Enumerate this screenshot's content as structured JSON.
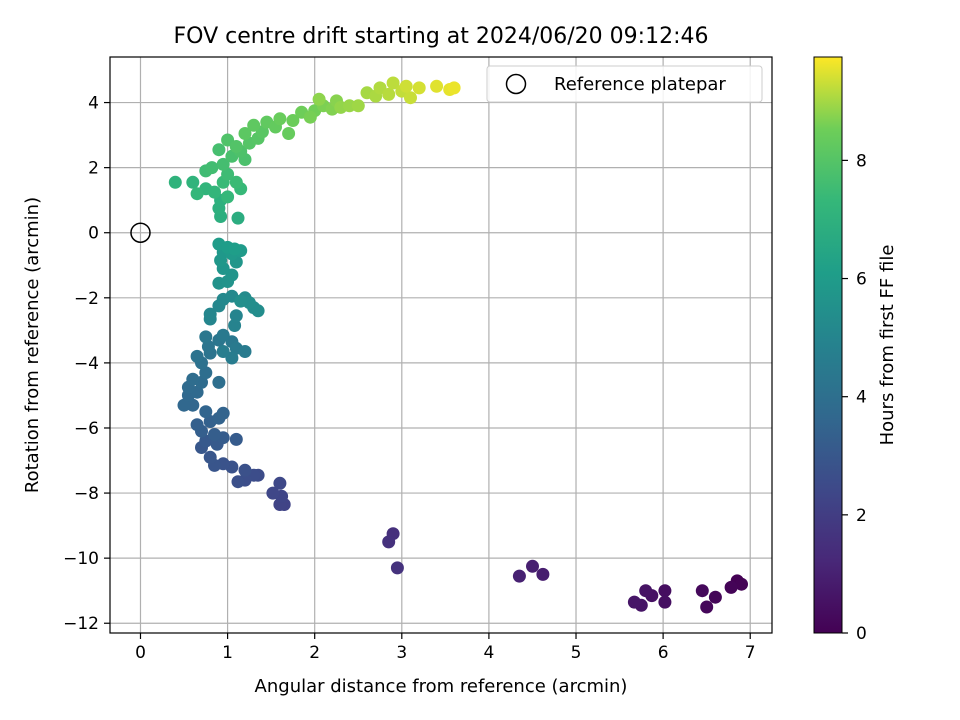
{
  "chart_data": {
    "type": "scatter",
    "title": "FOV centre drift starting at 2024/06/20 09:12:46",
    "xlabel": "Angular distance from reference (arcmin)",
    "ylabel": "Rotation from reference (arcmin)",
    "xlim": [
      -0.35,
      7.25
    ],
    "ylim": [
      -12.3,
      5.4
    ],
    "xticks": [
      0,
      1,
      2,
      3,
      4,
      5,
      6,
      7
    ],
    "yticks": [
      -12,
      -10,
      -8,
      -6,
      -4,
      -2,
      0,
      2,
      4
    ],
    "grid": true,
    "legend": {
      "location": "top-right",
      "entries": [
        "Reference platepar"
      ]
    },
    "reference_point": {
      "x": 0,
      "y": 0,
      "label": "Reference platepar"
    },
    "colorbar": {
      "label": "Hours from first FF file",
      "colormap": "viridis",
      "range": [
        0,
        9.75
      ],
      "ticks": [
        0,
        2,
        4,
        6,
        8
      ]
    },
    "points": [
      [
        6.85,
        -10.7,
        0.0
      ],
      [
        6.9,
        -10.8,
        0.05
      ],
      [
        6.78,
        -10.9,
        0.1
      ],
      [
        6.6,
        -11.2,
        0.15
      ],
      [
        6.5,
        -11.5,
        0.2
      ],
      [
        6.45,
        -11.0,
        0.25
      ],
      [
        6.02,
        -11.0,
        0.4
      ],
      [
        6.02,
        -11.35,
        0.45
      ],
      [
        5.87,
        -11.15,
        0.5
      ],
      [
        5.8,
        -11.0,
        0.55
      ],
      [
        5.75,
        -11.45,
        0.6
      ],
      [
        5.67,
        -11.35,
        0.65
      ],
      [
        4.62,
        -10.5,
        0.9
      ],
      [
        4.5,
        -10.25,
        0.95
      ],
      [
        4.35,
        -10.55,
        1.0
      ],
      [
        2.9,
        -9.25,
        1.5
      ],
      [
        2.85,
        -9.5,
        1.55
      ],
      [
        2.95,
        -10.3,
        1.6
      ],
      [
        1.65,
        -8.35,
        2.2
      ],
      [
        1.6,
        -8.35,
        2.25
      ],
      [
        1.62,
        -8.1,
        2.3
      ],
      [
        1.52,
        -8.0,
        2.35
      ],
      [
        1.6,
        -7.7,
        2.4
      ],
      [
        1.35,
        -7.45,
        2.55
      ],
      [
        1.3,
        -7.45,
        2.6
      ],
      [
        1.2,
        -7.6,
        2.65
      ],
      [
        1.12,
        -7.65,
        2.7
      ],
      [
        1.2,
        -7.3,
        2.75
      ],
      [
        1.05,
        -7.2,
        2.8
      ],
      [
        0.95,
        -7.1,
        2.85
      ],
      [
        0.85,
        -7.15,
        2.9
      ],
      [
        0.8,
        -6.9,
        2.95
      ],
      [
        0.7,
        -6.6,
        3.0
      ],
      [
        0.75,
        -6.4,
        3.05
      ],
      [
        0.88,
        -6.5,
        3.1
      ],
      [
        1.1,
        -6.35,
        3.15
      ],
      [
        0.95,
        -6.3,
        3.2
      ],
      [
        0.85,
        -6.2,
        3.25
      ],
      [
        0.7,
        -6.1,
        3.3
      ],
      [
        0.65,
        -5.9,
        3.35
      ],
      [
        0.8,
        -5.8,
        3.4
      ],
      [
        0.9,
        -5.7,
        3.45
      ],
      [
        0.95,
        -5.55,
        3.5
      ],
      [
        0.75,
        -5.5,
        3.55
      ],
      [
        0.6,
        -5.3,
        3.6
      ],
      [
        0.5,
        -5.3,
        3.65
      ],
      [
        0.55,
        -5.0,
        3.7
      ],
      [
        0.65,
        -4.9,
        3.75
      ],
      [
        0.55,
        -4.75,
        3.8
      ],
      [
        0.7,
        -4.6,
        3.85
      ],
      [
        0.6,
        -4.5,
        3.9
      ],
      [
        0.75,
        -4.3,
        3.95
      ],
      [
        0.9,
        -4.6,
        4.0
      ],
      [
        0.7,
        -4.0,
        4.1
      ],
      [
        0.65,
        -3.8,
        4.15
      ],
      [
        0.8,
        -3.7,
        4.2
      ],
      [
        0.78,
        -3.5,
        4.25
      ],
      [
        0.9,
        -3.3,
        4.3
      ],
      [
        0.75,
        -3.2,
        4.35
      ],
      [
        1.05,
        -3.35,
        4.4
      ],
      [
        0.95,
        -3.15,
        4.45
      ],
      [
        1.1,
        -3.55,
        4.5
      ],
      [
        1.2,
        -3.65,
        4.55
      ],
      [
        1.05,
        -3.85,
        4.6
      ],
      [
        0.95,
        -3.65,
        4.65
      ],
      [
        1.08,
        -2.85,
        4.9
      ],
      [
        1.1,
        -2.55,
        4.95
      ],
      [
        0.8,
        -2.65,
        5.0
      ],
      [
        0.8,
        -2.5,
        5.05
      ],
      [
        0.9,
        -2.25,
        5.1
      ],
      [
        0.95,
        -2.05,
        5.15
      ],
      [
        1.05,
        -1.95,
        5.2
      ],
      [
        1.2,
        -2.0,
        5.25
      ],
      [
        1.3,
        -2.3,
        5.3
      ],
      [
        1.35,
        -2.4,
        5.35
      ],
      [
        1.25,
        -2.15,
        5.4
      ],
      [
        1.15,
        -2.1,
        5.45
      ],
      [
        0.9,
        -1.55,
        5.55
      ],
      [
        1.0,
        -1.5,
        5.6
      ],
      [
        1.05,
        -1.3,
        5.65
      ],
      [
        0.95,
        -1.1,
        5.7
      ],
      [
        1.1,
        -0.9,
        5.75
      ],
      [
        0.92,
        -0.85,
        5.8
      ],
      [
        0.95,
        -0.6,
        5.85
      ],
      [
        1.05,
        -0.65,
        5.9
      ],
      [
        1.15,
        -0.55,
        5.95
      ],
      [
        0.9,
        -0.35,
        6.0
      ],
      [
        1.0,
        -0.45,
        6.05
      ],
      [
        1.08,
        -0.5,
        6.1
      ],
      [
        1.12,
        0.45,
        6.8
      ],
      [
        0.92,
        0.5,
        6.85
      ],
      [
        0.9,
        0.75,
        6.9
      ],
      [
        0.92,
        1.0,
        6.95
      ],
      [
        0.4,
        1.55,
        7.05
      ],
      [
        0.6,
        1.55,
        7.1
      ],
      [
        0.75,
        1.35,
        7.15
      ],
      [
        0.85,
        1.25,
        7.2
      ],
      [
        0.65,
        1.2,
        7.25
      ],
      [
        1.0,
        1.1,
        7.3
      ],
      [
        1.15,
        1.35,
        7.35
      ],
      [
        0.95,
        1.55,
        7.4
      ],
      [
        1.1,
        1.55,
        7.45
      ],
      [
        1.0,
        1.8,
        7.5
      ],
      [
        0.75,
        1.9,
        7.55
      ],
      [
        0.82,
        2.0,
        7.6
      ],
      [
        0.95,
        2.1,
        7.65
      ],
      [
        0.9,
        2.55,
        7.7
      ],
      [
        1.05,
        2.35,
        7.75
      ],
      [
        1.2,
        2.25,
        7.8
      ],
      [
        1.15,
        2.5,
        7.85
      ],
      [
        1.0,
        2.85,
        7.9
      ],
      [
        1.1,
        2.65,
        7.95
      ],
      [
        1.25,
        2.75,
        8.0
      ],
      [
        1.35,
        2.9,
        8.05
      ],
      [
        1.4,
        3.1,
        8.1
      ],
      [
        1.2,
        3.05,
        8.15
      ],
      [
        1.3,
        3.3,
        8.2
      ],
      [
        1.45,
        3.4,
        8.25
      ],
      [
        1.55,
        3.25,
        8.3
      ],
      [
        1.7,
        3.05,
        8.35
      ],
      [
        1.6,
        3.5,
        8.4
      ],
      [
        1.75,
        3.45,
        8.45
      ],
      [
        1.85,
        3.7,
        8.5
      ],
      [
        2.0,
        3.75,
        8.55
      ],
      [
        1.95,
        3.55,
        8.6
      ],
      [
        2.1,
        3.9,
        8.65
      ],
      [
        2.2,
        3.8,
        8.7
      ],
      [
        2.25,
        4.05,
        8.75
      ],
      [
        2.05,
        4.1,
        8.8
      ],
      [
        2.3,
        3.85,
        8.85
      ],
      [
        2.4,
        3.9,
        8.9
      ],
      [
        2.5,
        3.9,
        8.95
      ],
      [
        2.6,
        4.3,
        9.0
      ],
      [
        2.7,
        4.2,
        9.05
      ],
      [
        2.75,
        4.45,
        9.1
      ],
      [
        2.85,
        4.25,
        9.15
      ],
      [
        2.9,
        4.6,
        9.2
      ],
      [
        3.0,
        4.35,
        9.25
      ],
      [
        3.1,
        4.15,
        9.3
      ],
      [
        3.05,
        4.5,
        9.35
      ],
      [
        3.2,
        4.45,
        9.4
      ],
      [
        3.4,
        4.5,
        9.5
      ],
      [
        3.55,
        4.4,
        9.55
      ],
      [
        3.6,
        4.45,
        9.6
      ]
    ]
  }
}
